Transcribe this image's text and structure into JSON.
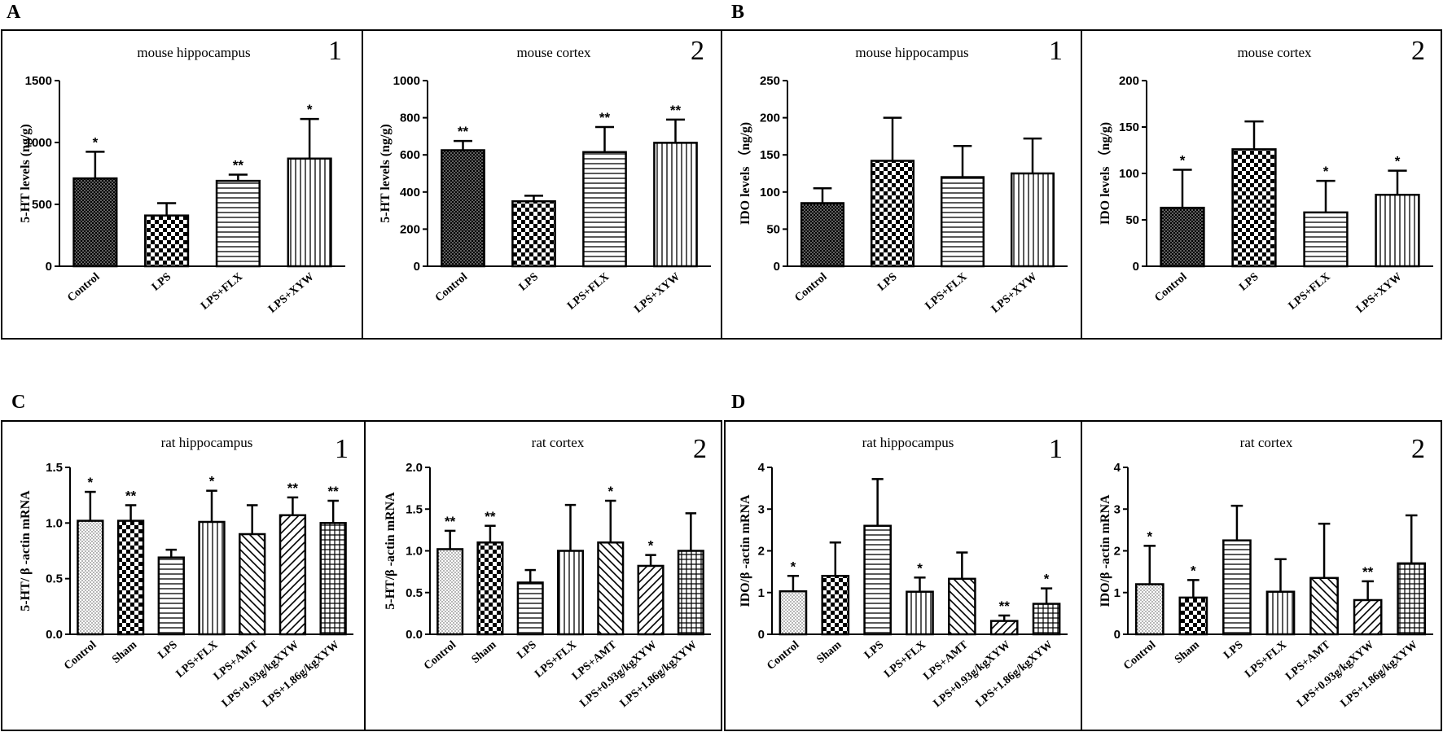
{
  "figure": {
    "panel_labels": [
      "A",
      "B",
      "C",
      "D"
    ]
  },
  "chart_data": [
    {
      "type": "bar",
      "panel": "A",
      "number": "1",
      "title": "mouse hippocampus",
      "ylabel": "5-HT levels (ng/g)",
      "ylim": [
        0,
        1500
      ],
      "yticks": [
        0,
        500,
        1000,
        1500
      ],
      "categories": [
        "Control",
        "LPS",
        "LPS+FLX",
        "LPS+XYW"
      ],
      "values": [
        710,
        410,
        690,
        870
      ],
      "errors": [
        215,
        100,
        50,
        320
      ],
      "significance": [
        "*",
        "",
        "**",
        "*"
      ],
      "patterns": [
        "crosshatch",
        "checker",
        "hlines",
        "vlines"
      ]
    },
    {
      "type": "bar",
      "panel": "A",
      "number": "2",
      "title": "mouse cortex",
      "ylabel": "5-HT levels (ng/g)",
      "ylim": [
        0,
        1000
      ],
      "yticks": [
        0,
        200,
        400,
        600,
        800,
        1000
      ],
      "categories": [
        "Control",
        "LPS",
        "LPS+FLX",
        "LPS+XYW"
      ],
      "values": [
        625,
        350,
        615,
        665
      ],
      "errors": [
        50,
        30,
        135,
        125
      ],
      "significance": [
        "**",
        "",
        "**",
        "**"
      ],
      "patterns": [
        "crosshatch",
        "checker",
        "hlines",
        "vlines"
      ]
    },
    {
      "type": "bar",
      "panel": "B",
      "number": "1",
      "title": "mouse hippocampus",
      "ylabel": "IDO levels （ng/g)",
      "ylim": [
        0,
        250
      ],
      "yticks": [
        0,
        50,
        100,
        150,
        200,
        250
      ],
      "categories": [
        "Control",
        "LPS",
        "LPS+FLX",
        "LPS+XYW"
      ],
      "values": [
        85,
        142,
        120,
        125
      ],
      "errors": [
        20,
        58,
        42,
        47
      ],
      "significance": [
        "",
        "",
        "",
        ""
      ],
      "patterns": [
        "crosshatch",
        "checker",
        "hlines",
        "vlines"
      ]
    },
    {
      "type": "bar",
      "panel": "B",
      "number": "2",
      "title": "mouse cortex",
      "ylabel": "IDO levels （ng/g)",
      "ylim": [
        0,
        200
      ],
      "yticks": [
        0,
        50,
        100,
        150,
        200
      ],
      "categories": [
        "Control",
        "LPS",
        "LPS+FLX",
        "LPS+XYW"
      ],
      "values": [
        63,
        126,
        58,
        77
      ],
      "errors": [
        41,
        30,
        34,
        26
      ],
      "significance": [
        "*",
        "",
        "*",
        "*"
      ],
      "patterns": [
        "crosshatch",
        "checker",
        "hlines",
        "vlines"
      ]
    },
    {
      "type": "bar",
      "panel": "C",
      "number": "1",
      "title": "rat hippocampus",
      "ylabel": "5-HT/ β -actin mRNA",
      "ylim": [
        0,
        1.5
      ],
      "yticks": [
        "0.0",
        "0.5",
        "1.0",
        "1.5"
      ],
      "categories": [
        "Control",
        "Sham",
        "LPS",
        "LPS+FLX",
        "LPS+AMT",
        "LPS+0.93g/kgXYW",
        "LPS+1.86g/kgXYW"
      ],
      "values": [
        1.02,
        1.02,
        0.69,
        1.01,
        0.9,
        1.07,
        1.0
      ],
      "errors": [
        0.26,
        0.14,
        0.07,
        0.28,
        0.26,
        0.16,
        0.2
      ],
      "significance": [
        "*",
        "**",
        "",
        "*",
        "",
        "**",
        "**"
      ],
      "patterns": [
        "dots",
        "checker",
        "hlines",
        "vlines",
        "backdiag",
        "fwddiag",
        "grid"
      ]
    },
    {
      "type": "bar",
      "panel": "C",
      "number": "2",
      "title": "rat cortex",
      "ylabel": "5-HT/β -actin mRNA",
      "ylim": [
        0,
        2.0
      ],
      "yticks": [
        "0.0",
        "0.5",
        "1.0",
        "1.5",
        "2.0"
      ],
      "categories": [
        "Control",
        "Sham",
        "LPS",
        "LPS+FLX",
        "LPS+AMT",
        "LPS+0.93g/kgXYW",
        "LPS+1.86g/kgXYW"
      ],
      "values": [
        1.02,
        1.1,
        0.62,
        1.0,
        1.1,
        0.82,
        1.0
      ],
      "errors": [
        0.22,
        0.2,
        0.15,
        0.55,
        0.5,
        0.13,
        0.45
      ],
      "significance": [
        "**",
        "**",
        "",
        "",
        "*",
        "*",
        ""
      ],
      "patterns": [
        "dots",
        "checker",
        "hlines",
        "vlines",
        "backdiag",
        "fwddiag",
        "grid"
      ]
    },
    {
      "type": "bar",
      "panel": "D",
      "number": "1",
      "title": "rat hippocampus",
      "ylabel": "IDO/β -actin mRNA",
      "ylim": [
        0,
        4
      ],
      "yticks": [
        0,
        1,
        2,
        3,
        4
      ],
      "categories": [
        "Control",
        "Sham",
        "LPS",
        "LPS+FLX",
        "LPS+AMT",
        "LPS+0.93g/kgXYW",
        "LPS+1.86g/kgXYW"
      ],
      "values": [
        1.03,
        1.4,
        2.6,
        1.02,
        1.33,
        0.32,
        0.73
      ],
      "errors": [
        0.37,
        0.8,
        1.12,
        0.34,
        0.63,
        0.13,
        0.37
      ],
      "significance": [
        "*",
        "",
        "",
        "*",
        "",
        "**",
        "*"
      ],
      "patterns": [
        "dots",
        "checker",
        "hlines",
        "vlines",
        "backdiag",
        "fwddiag",
        "grid"
      ]
    },
    {
      "type": "bar",
      "panel": "D",
      "number": "2",
      "title": "rat cortex",
      "ylabel": "IDO/β -actin mRNA",
      "ylim": [
        0,
        4
      ],
      "yticks": [
        0,
        1,
        2,
        3,
        4
      ],
      "categories": [
        "Control",
        "Sham",
        "LPS",
        "LPS+FLX",
        "LPS+AMT",
        "LPS+0.93g/kgXYW",
        "LPS+1.86g/kgXYW"
      ],
      "values": [
        1.2,
        0.88,
        2.25,
        1.02,
        1.35,
        0.82,
        1.7
      ],
      "errors": [
        0.92,
        0.42,
        0.83,
        0.78,
        1.3,
        0.45,
        1.15
      ],
      "significance": [
        "*",
        "*",
        "",
        "",
        "",
        "**",
        ""
      ],
      "patterns": [
        "dots",
        "checker",
        "hlines",
        "vlines",
        "backdiag",
        "fwddiag",
        "grid"
      ]
    }
  ]
}
